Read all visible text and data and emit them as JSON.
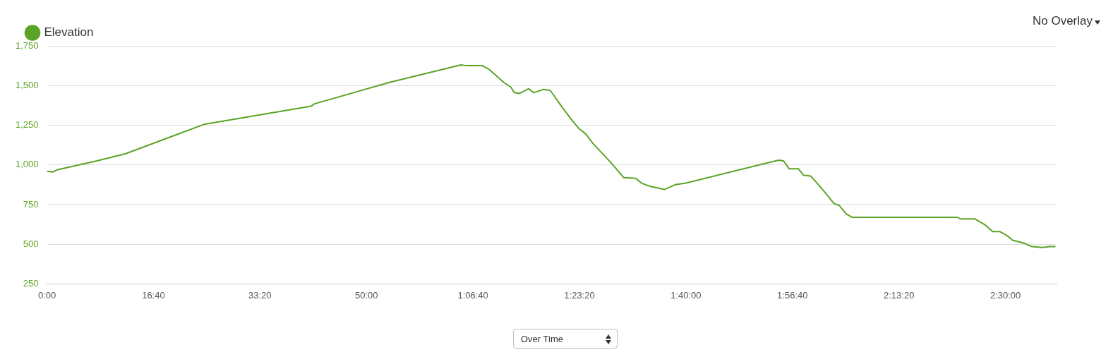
{
  "chart_data": {
    "type": "line",
    "legend": "top left",
    "grid": "y",
    "marker": "none",
    "line_style": "solid",
    "annotations": [
      "No Overlay",
      "Over Time"
    ],
    "xlim": [
      0,
      9480
    ],
    "ylim": [
      250,
      1750
    ],
    "xticks": [
      {
        "value": 0,
        "label": "0:00"
      },
      {
        "value": 1000,
        "label": "16:40"
      },
      {
        "value": 2000,
        "label": "33:20"
      },
      {
        "value": 3000,
        "label": "50:00"
      },
      {
        "value": 4000,
        "label": "1:06:40"
      },
      {
        "value": 5000,
        "label": "1:23:20"
      },
      {
        "value": 6000,
        "label": "1:40:00"
      },
      {
        "value": 7000,
        "label": "1:56:40"
      },
      {
        "value": 8000,
        "label": "2:13:20"
      },
      {
        "value": 9000,
        "label": "2:30:00"
      }
    ],
    "yticks": [
      {
        "value": 250,
        "label": "250"
      },
      {
        "value": 500,
        "label": "500"
      },
      {
        "value": 750,
        "label": "750"
      },
      {
        "value": 1000,
        "label": "1,000"
      },
      {
        "value": 1250,
        "label": "1,250"
      },
      {
        "value": 1500,
        "label": "1,500"
      },
      {
        "value": 1750,
        "label": "1,750"
      }
    ],
    "series": [
      {
        "name": "Elevation",
        "color": "#5aa427",
        "x": [
          0,
          54,
          101,
          469,
          737,
          1474,
          2480,
          2513,
          3217,
          3887,
          3941,
          4088,
          4155,
          4289,
          4356,
          4390,
          4437,
          4524,
          4571,
          4658,
          4725,
          4758,
          4825,
          4926,
          4993,
          5060,
          5127,
          5295,
          5415,
          5529,
          5583,
          5663,
          5797,
          5831,
          5898,
          5998,
          6870,
          6917,
          6970,
          7057,
          7104,
          7171,
          7238,
          7338,
          7392,
          7439,
          7506,
          7560,
          8545,
          8579,
          8713,
          8813,
          8880,
          8947,
          9014,
          9068,
          9182,
          9249,
          9349,
          9416,
          9470
        ],
        "values": [
          960,
          955,
          970,
          1025,
          1070,
          1255,
          1370,
          1385,
          1520,
          1630,
          1625,
          1625,
          1600,
          1520,
          1490,
          1455,
          1450,
          1480,
          1455,
          1475,
          1470,
          1440,
          1375,
          1285,
          1230,
          1195,
          1135,
          1015,
          920,
          915,
          885,
          865,
          845,
          855,
          875,
          885,
          1030,
          1025,
          975,
          975,
          935,
          930,
          880,
          800,
          755,
          745,
          690,
          670,
          670,
          660,
          660,
          620,
          580,
          580,
          555,
          525,
          505,
          485,
          480,
          485,
          485
        ]
      }
    ]
  }
}
